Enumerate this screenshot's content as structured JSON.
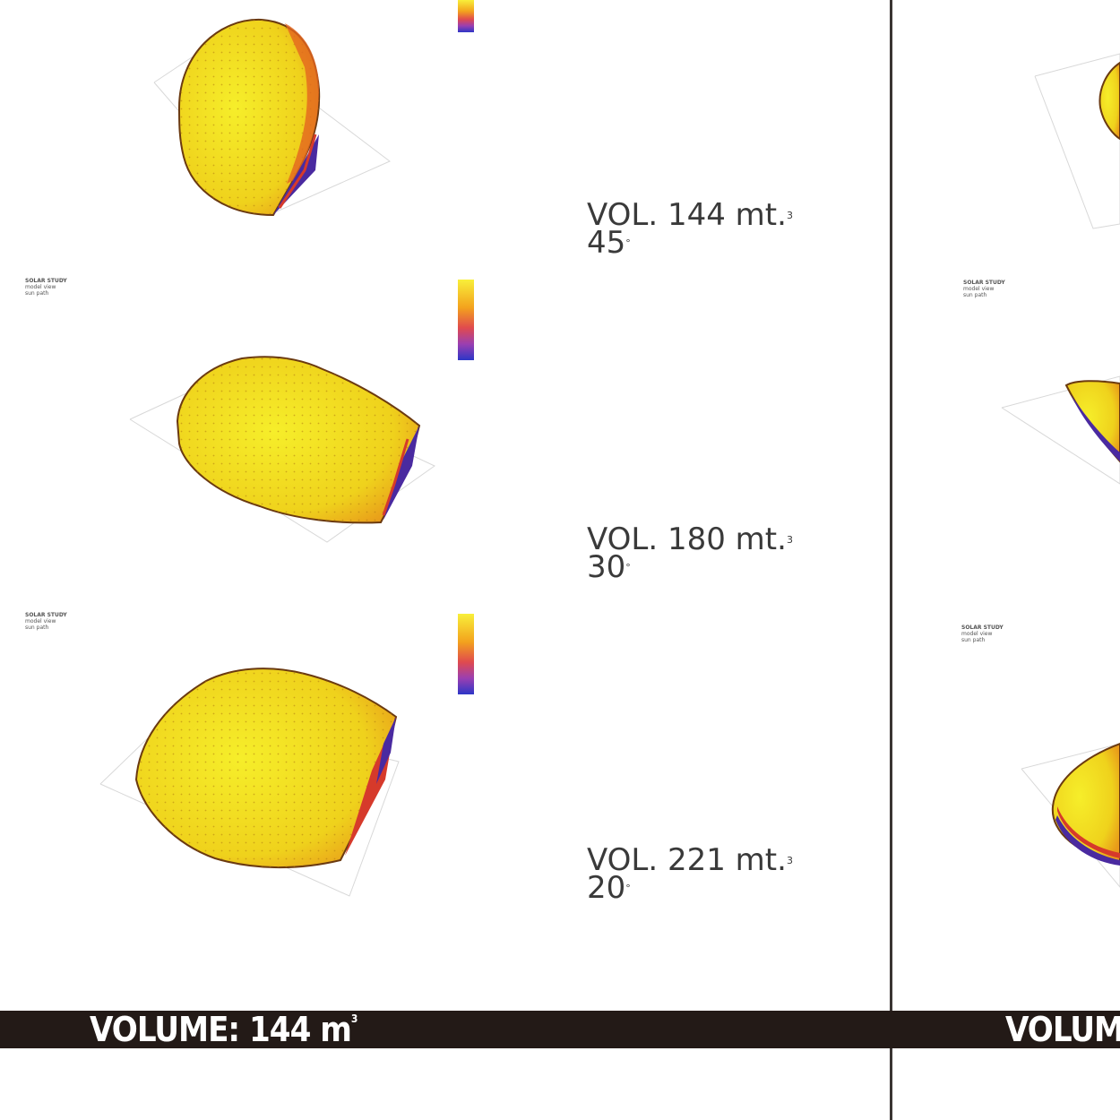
{
  "panels": [
    {
      "volume": "VOL. 144 mt.",
      "volume_sup": "3",
      "angle": "45",
      "angle_sup": "°"
    },
    {
      "volume": "VOL. 180 mt.",
      "volume_sup": "3",
      "angle": "30",
      "angle_sup": "°"
    },
    {
      "volume": "VOL. 221 mt.",
      "volume_sup": "3",
      "angle": "20",
      "angle_sup": "°"
    }
  ],
  "volume_bar": {
    "label": "VOLUME: 144 m",
    "label_sup": "3",
    "label_right": "VOLUM"
  },
  "small_captions": {
    "title": "SOLAR STUDY",
    "subtitle": "model view",
    "note": "sun path"
  },
  "colors": {
    "yellow": "#f5e81c",
    "orange": "#f29a1b",
    "red": "#d63a2b",
    "purple": "#5a2a8f",
    "bar": "#231a17"
  }
}
